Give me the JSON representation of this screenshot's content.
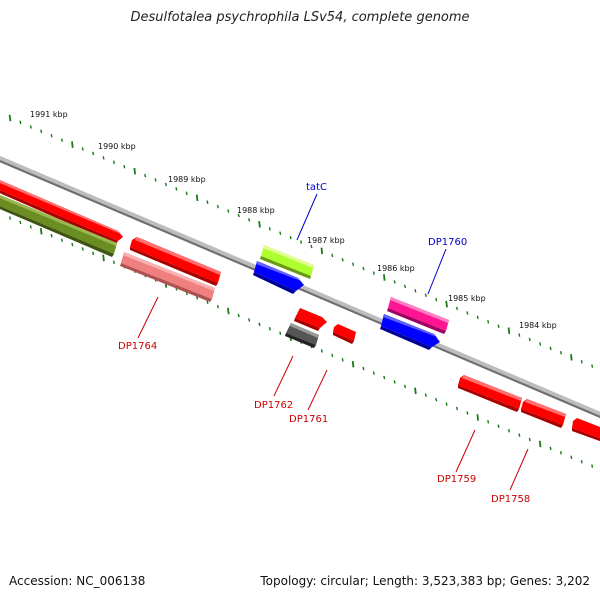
{
  "title": "Desulfotalea psychrophila LSv54, complete genome",
  "footer": {
    "accession": "Accession: NC_006138",
    "summary": "Topology: circular; Length: 3,523,383 bp; Genes: 3,202"
  },
  "ruler": [
    "1991 kbp",
    "1990 kbp",
    "1989 kbp",
    "1988 kbp",
    "1987 kbp",
    "1986 kbp",
    "1985 kbp",
    "1984 kbp"
  ],
  "gene_labels": {
    "tatC": "tatC",
    "DP1760": "DP1760",
    "DP1764": "DP1764",
    "DP1762": "DP1762",
    "DP1761": "DP1761",
    "DP1759": "DP1759",
    "DP1758": "DP1758"
  },
  "colors": {
    "backbone": "#8a8a8a",
    "tick": "#1a7a1a",
    "forward_label": "#0000cc",
    "reverse_label": "#cc0000",
    "red_gene": "#ff0000",
    "pink_gene": "#f08080",
    "olive_gene": "#6b8e23",
    "lime_gene": "#adff2f",
    "blue_gene": "#0000ff",
    "magenta_gene": "#ff1493",
    "gray_gene": "#555555"
  }
}
